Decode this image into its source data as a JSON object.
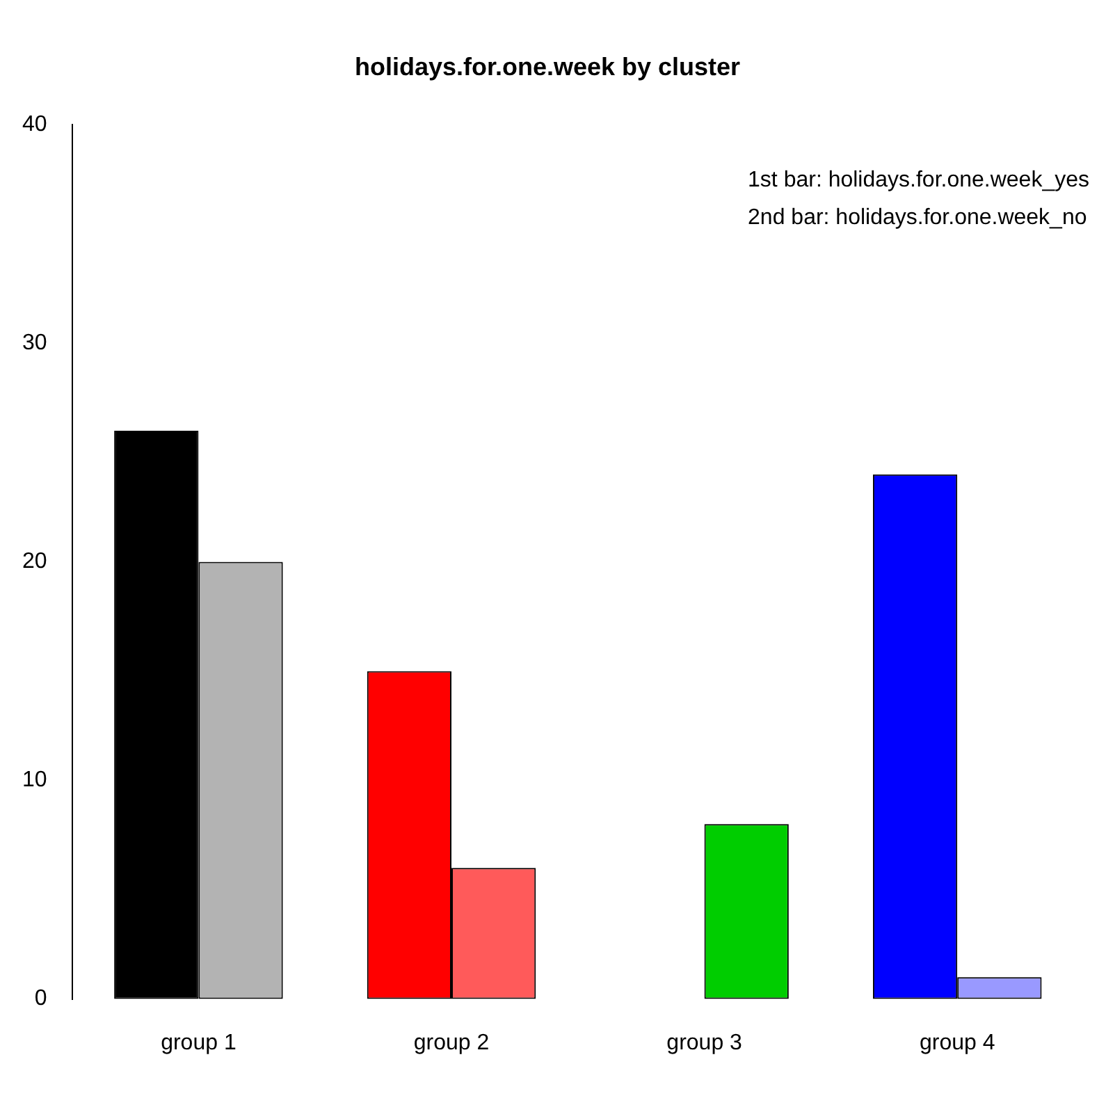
{
  "chart_data": {
    "type": "bar",
    "title": "holidays.for.one.week by cluster",
    "categories": [
      "group 1",
      "group 2",
      "group 3",
      "group 4"
    ],
    "series": [
      {
        "colors": [
          "#000000",
          "#ff0000",
          "#008b00",
          "#0000ff"
        ],
        "values": [
          26,
          15,
          0,
          24
        ]
      },
      {
        "colors": [
          "#b3b3b3",
          "#ff5a5a",
          "#00cd00",
          "#9999ff"
        ],
        "values": [
          20,
          6,
          8,
          1
        ]
      }
    ],
    "ylim": [
      0,
      40
    ],
    "yticks": [
      0,
      10,
      20,
      30,
      40
    ],
    "grid": false,
    "legend": false,
    "annotations": [
      "1st bar: holidays.for.one.week_yes",
      "2nd bar: holidays.for.one.week_no"
    ]
  }
}
